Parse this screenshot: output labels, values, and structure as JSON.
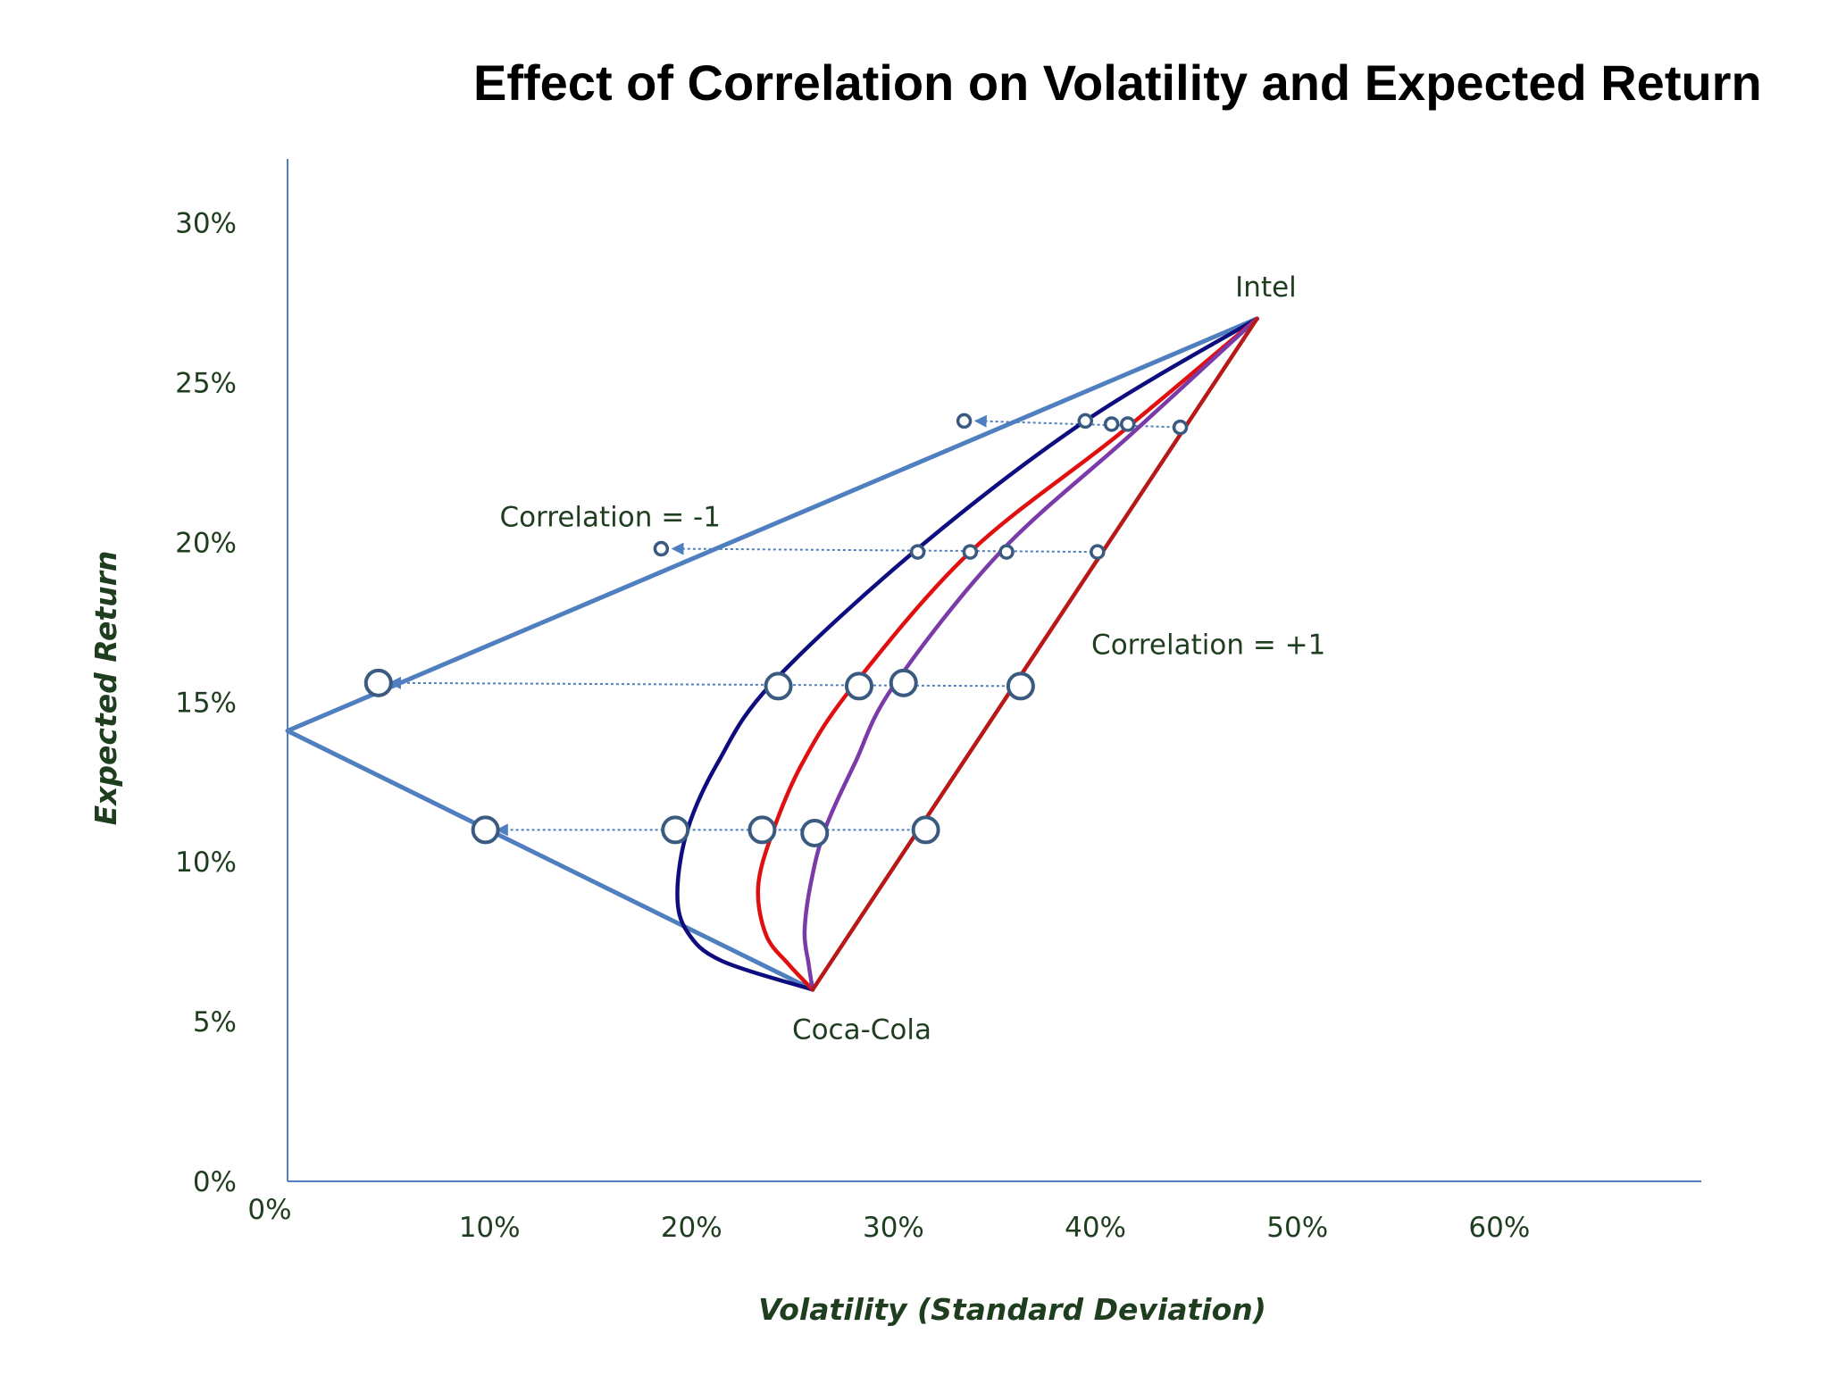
{
  "chart_data": {
    "type": "line",
    "title": "Effect of Correlation on Volatility and Expected Return",
    "xlabel": "Volatility (Standard Deviation)",
    "ylabel": "Expected Return",
    "x_ticks": [
      "0%",
      "10%",
      "20%",
      "30%",
      "40%",
      "50%",
      "60%"
    ],
    "y_ticks": [
      "0%",
      "5%",
      "10%",
      "15%",
      "20%",
      "25%",
      "30%"
    ],
    "xlim": [
      0,
      70
    ],
    "ylim": [
      0,
      32
    ],
    "grid": false,
    "colors": {
      "axis": "#4f7fbf",
      "corr_minus1": "#4f7fbf",
      "corr_low": "#0d0d80",
      "corr_mid": "#e01010",
      "corr_high": "#7a3aa8",
      "corr_plus1": "#b81818",
      "marker_edge": "#3a5a80",
      "arrow": "#4f7fbf",
      "text": "#1f3d1f"
    },
    "endpoints": [
      {
        "label": "Intel",
        "x": 48,
        "y": 27
      },
      {
        "label": "Coca-Cola",
        "x": 26,
        "y": 6
      }
    ],
    "annotations": [
      {
        "text": "Correlation =  -1",
        "x": 10.5,
        "y": 20.5
      },
      {
        "text": "Correlation =  +1",
        "x": 39.8,
        "y": 16.5
      }
    ],
    "series": [
      {
        "id": "corr_minus1",
        "points": [
          [
            48,
            27
          ],
          [
            0,
            14.1
          ],
          [
            26,
            6
          ]
        ]
      },
      {
        "id": "corr_low",
        "points": [
          [
            48,
            27
          ],
          [
            39.5,
            23.8
          ],
          [
            31.2,
            19.8
          ],
          [
            24,
            15.6
          ],
          [
            21.3,
            13.1
          ],
          [
            19.8,
            11
          ],
          [
            19.3,
            9
          ],
          [
            19.8,
            7.8
          ],
          [
            21.5,
            6.9
          ],
          [
            26,
            6
          ]
        ]
      },
      {
        "id": "corr_mid",
        "points": [
          [
            48,
            27
          ],
          [
            41.2,
            23.4
          ],
          [
            33.8,
            19.7
          ],
          [
            28,
            15.5
          ],
          [
            25.5,
            13.1
          ],
          [
            24,
            10.9
          ],
          [
            23.3,
            9.2
          ],
          [
            23.7,
            7.7
          ],
          [
            24.8,
            6.8
          ],
          [
            26,
            6
          ]
        ]
      },
      {
        "id": "corr_high",
        "points": [
          [
            48,
            27
          ],
          [
            41.8,
            23.4
          ],
          [
            35.3,
            19.7
          ],
          [
            30,
            15.5
          ],
          [
            28.1,
            13.1
          ],
          [
            26.6,
            11
          ],
          [
            25.9,
            9.3
          ],
          [
            25.6,
            7.8
          ],
          [
            25.8,
            6.8
          ],
          [
            26,
            6
          ]
        ]
      },
      {
        "id": "corr_plus1",
        "points": [
          [
            48,
            27
          ],
          [
            26,
            6
          ]
        ]
      }
    ],
    "markers": [
      {
        "x": 33.5,
        "y": 23.8,
        "size": "small"
      },
      {
        "x": 39.5,
        "y": 23.8,
        "size": "small"
      },
      {
        "x": 40.8,
        "y": 23.7,
        "size": "small"
      },
      {
        "x": 41.6,
        "y": 23.7,
        "size": "small"
      },
      {
        "x": 44.2,
        "y": 23.6,
        "size": "small"
      },
      {
        "x": 18.5,
        "y": 19.8,
        "size": "small"
      },
      {
        "x": 31.2,
        "y": 19.7,
        "size": "small"
      },
      {
        "x": 33.8,
        "y": 19.7,
        "size": "small"
      },
      {
        "x": 35.6,
        "y": 19.7,
        "size": "small"
      },
      {
        "x": 40.1,
        "y": 19.7,
        "size": "small"
      },
      {
        "x": 4.5,
        "y": 15.6,
        "size": "large"
      },
      {
        "x": 24.3,
        "y": 15.5,
        "size": "large"
      },
      {
        "x": 28.3,
        "y": 15.5,
        "size": "large"
      },
      {
        "x": 30.5,
        "y": 15.6,
        "size": "large"
      },
      {
        "x": 36.3,
        "y": 15.5,
        "size": "large"
      },
      {
        "x": 9.8,
        "y": 11,
        "size": "large"
      },
      {
        "x": 19.2,
        "y": 11,
        "size": "large"
      },
      {
        "x": 23.5,
        "y": 11,
        "size": "large"
      },
      {
        "x": 26.1,
        "y": 10.9,
        "size": "large"
      },
      {
        "x": 31.6,
        "y": 11,
        "size": "large"
      }
    ],
    "arrows": [
      {
        "from": [
          44.2,
          23.6
        ],
        "to": [
          33.5,
          23.8
        ]
      },
      {
        "from": [
          40.1,
          19.7
        ],
        "to": [
          18.5,
          19.8
        ]
      },
      {
        "from": [
          36.3,
          15.5
        ],
        "to": [
          4.5,
          15.6
        ]
      },
      {
        "from": [
          31.6,
          11
        ],
        "to": [
          9.8,
          11
        ]
      }
    ]
  }
}
